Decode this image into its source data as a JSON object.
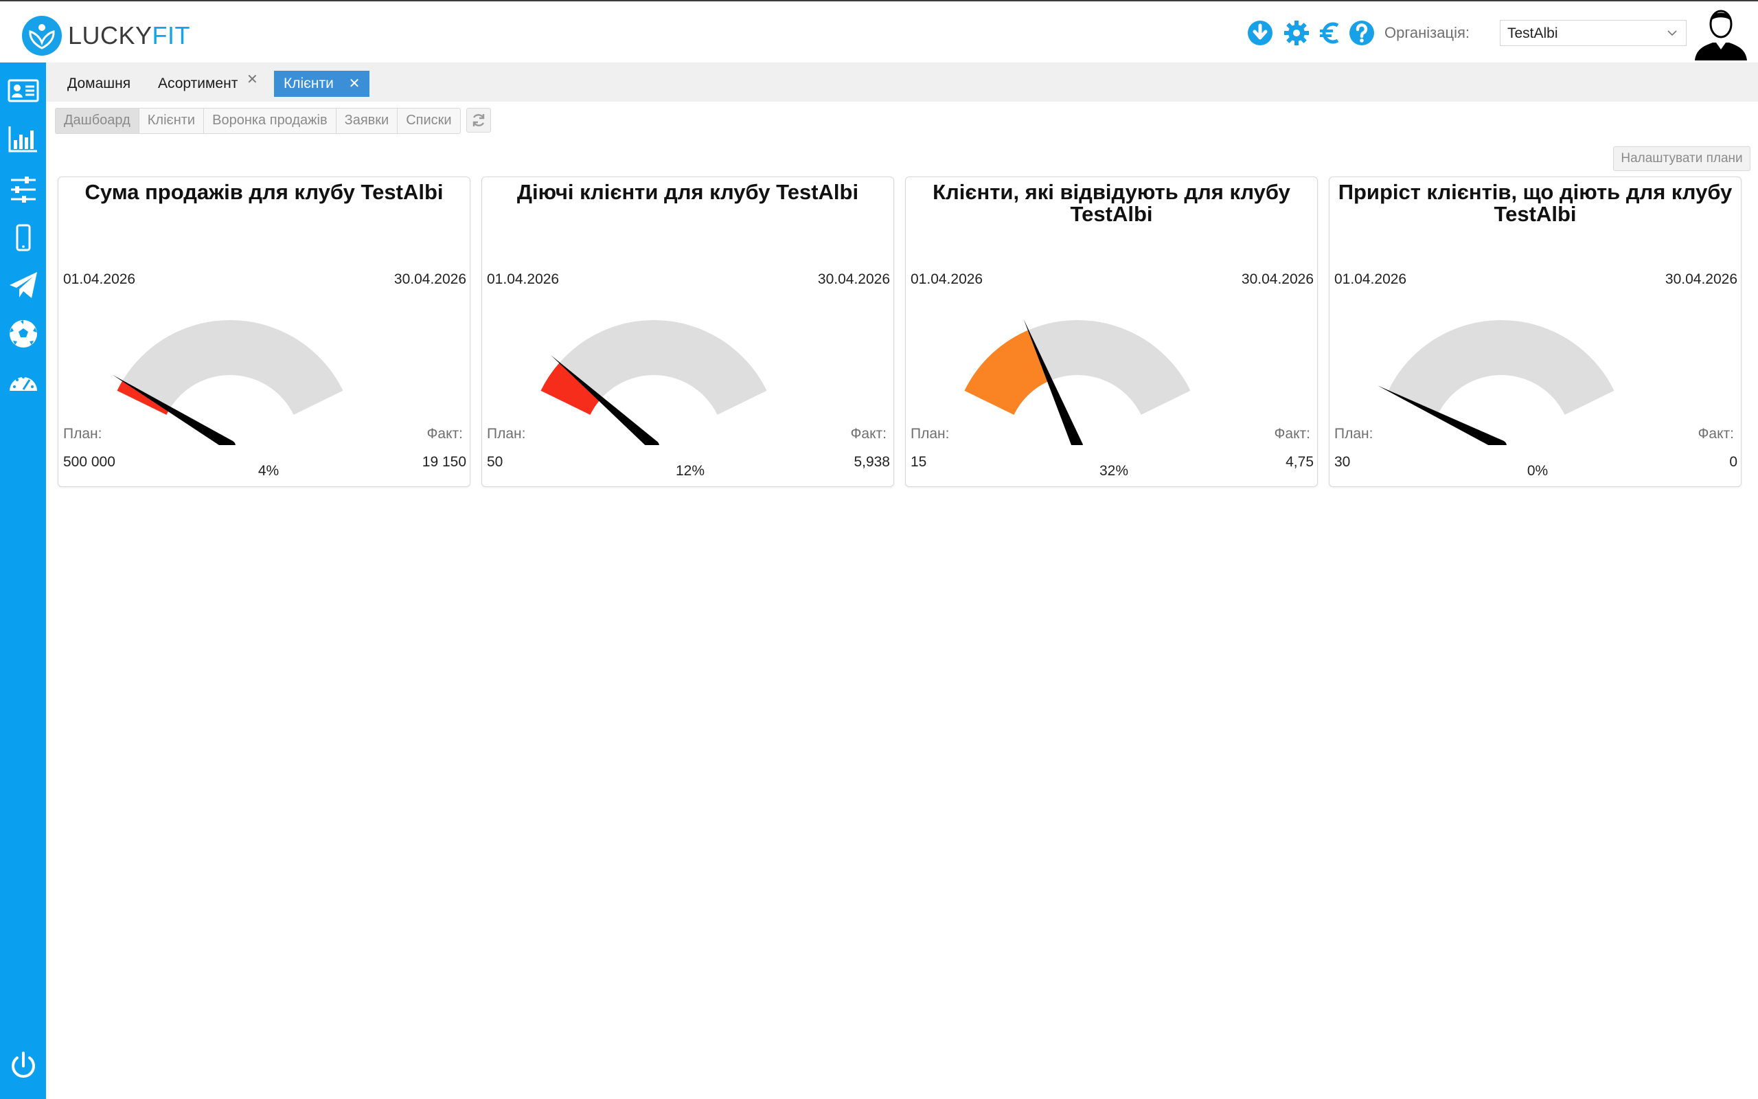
{
  "header": {
    "logo": {
      "part1": "LUCKY",
      "part2": "FIT"
    },
    "icons": [
      "download-icon",
      "gear-icon",
      "euro-icon",
      "help-icon"
    ],
    "org_label": "Організація:",
    "org_value": "TestAlbi"
  },
  "sidebar": {
    "items": [
      "contacts-card-icon",
      "bar-chart-icon",
      "sliders-icon",
      "mobile-phone-icon",
      "paper-plane-icon",
      "soccer-ball-icon",
      "dashboard-gauge-icon"
    ],
    "bottom": "power-icon"
  },
  "tabs": [
    {
      "label": "Домашня",
      "closable": false,
      "active": false
    },
    {
      "label": "Асортимент",
      "closable": true,
      "active": false
    },
    {
      "label": "Клієнти",
      "closable": true,
      "active": true
    }
  ],
  "subnav": [
    "Дашбоард",
    "Клієнти",
    "Воронка продажів",
    "Заявки",
    "Списки"
  ],
  "subnav_active": 0,
  "plans_button": "Налаштувати плани",
  "colors": {
    "brand_blue": "#0b9ff0",
    "tab_active": "#3a8fd6",
    "gauge_track": "#dedede",
    "gauge_red": "#f52d1a",
    "gauge_orange": "#fa8424",
    "needle": "#000000"
  },
  "cards": [
    {
      "title": "Сума продажів для клубу TestAlbi",
      "date_start": "01.04.2026",
      "date_end": "30.04.2026",
      "plan_label": "План:",
      "fact_label": "Факт:",
      "plan": "500 000",
      "fact": "19 150",
      "percent_label": "4%",
      "percent": 4,
      "fill_color": "#f52d1a"
    },
    {
      "title": "Діючі клієнти для клубу TestAlbi",
      "date_start": "01.04.2026",
      "date_end": "30.04.2026",
      "plan_label": "План:",
      "fact_label": "Факт:",
      "plan": "50",
      "fact": "5,938",
      "percent_label": "12%",
      "percent": 12,
      "fill_color": "#f52d1a"
    },
    {
      "title": "Клієнти, які відвідують для клубу TestAlbi",
      "date_start": "01.04.2026",
      "date_end": "30.04.2026",
      "plan_label": "План:",
      "fact_label": "Факт:",
      "plan": "15",
      "fact": "4,75",
      "percent_label": "32%",
      "percent": 32,
      "fill_color": "#fa8424"
    },
    {
      "title": "Приріст клієнтів, що діють для клубу TestAlbi",
      "date_start": "01.04.2026",
      "date_end": "30.04.2026",
      "plan_label": "План:",
      "fact_label": "Факт:",
      "plan": "30",
      "fact": "0",
      "percent_label": "0%",
      "percent": 0,
      "fill_color": "#f52d1a"
    }
  ]
}
